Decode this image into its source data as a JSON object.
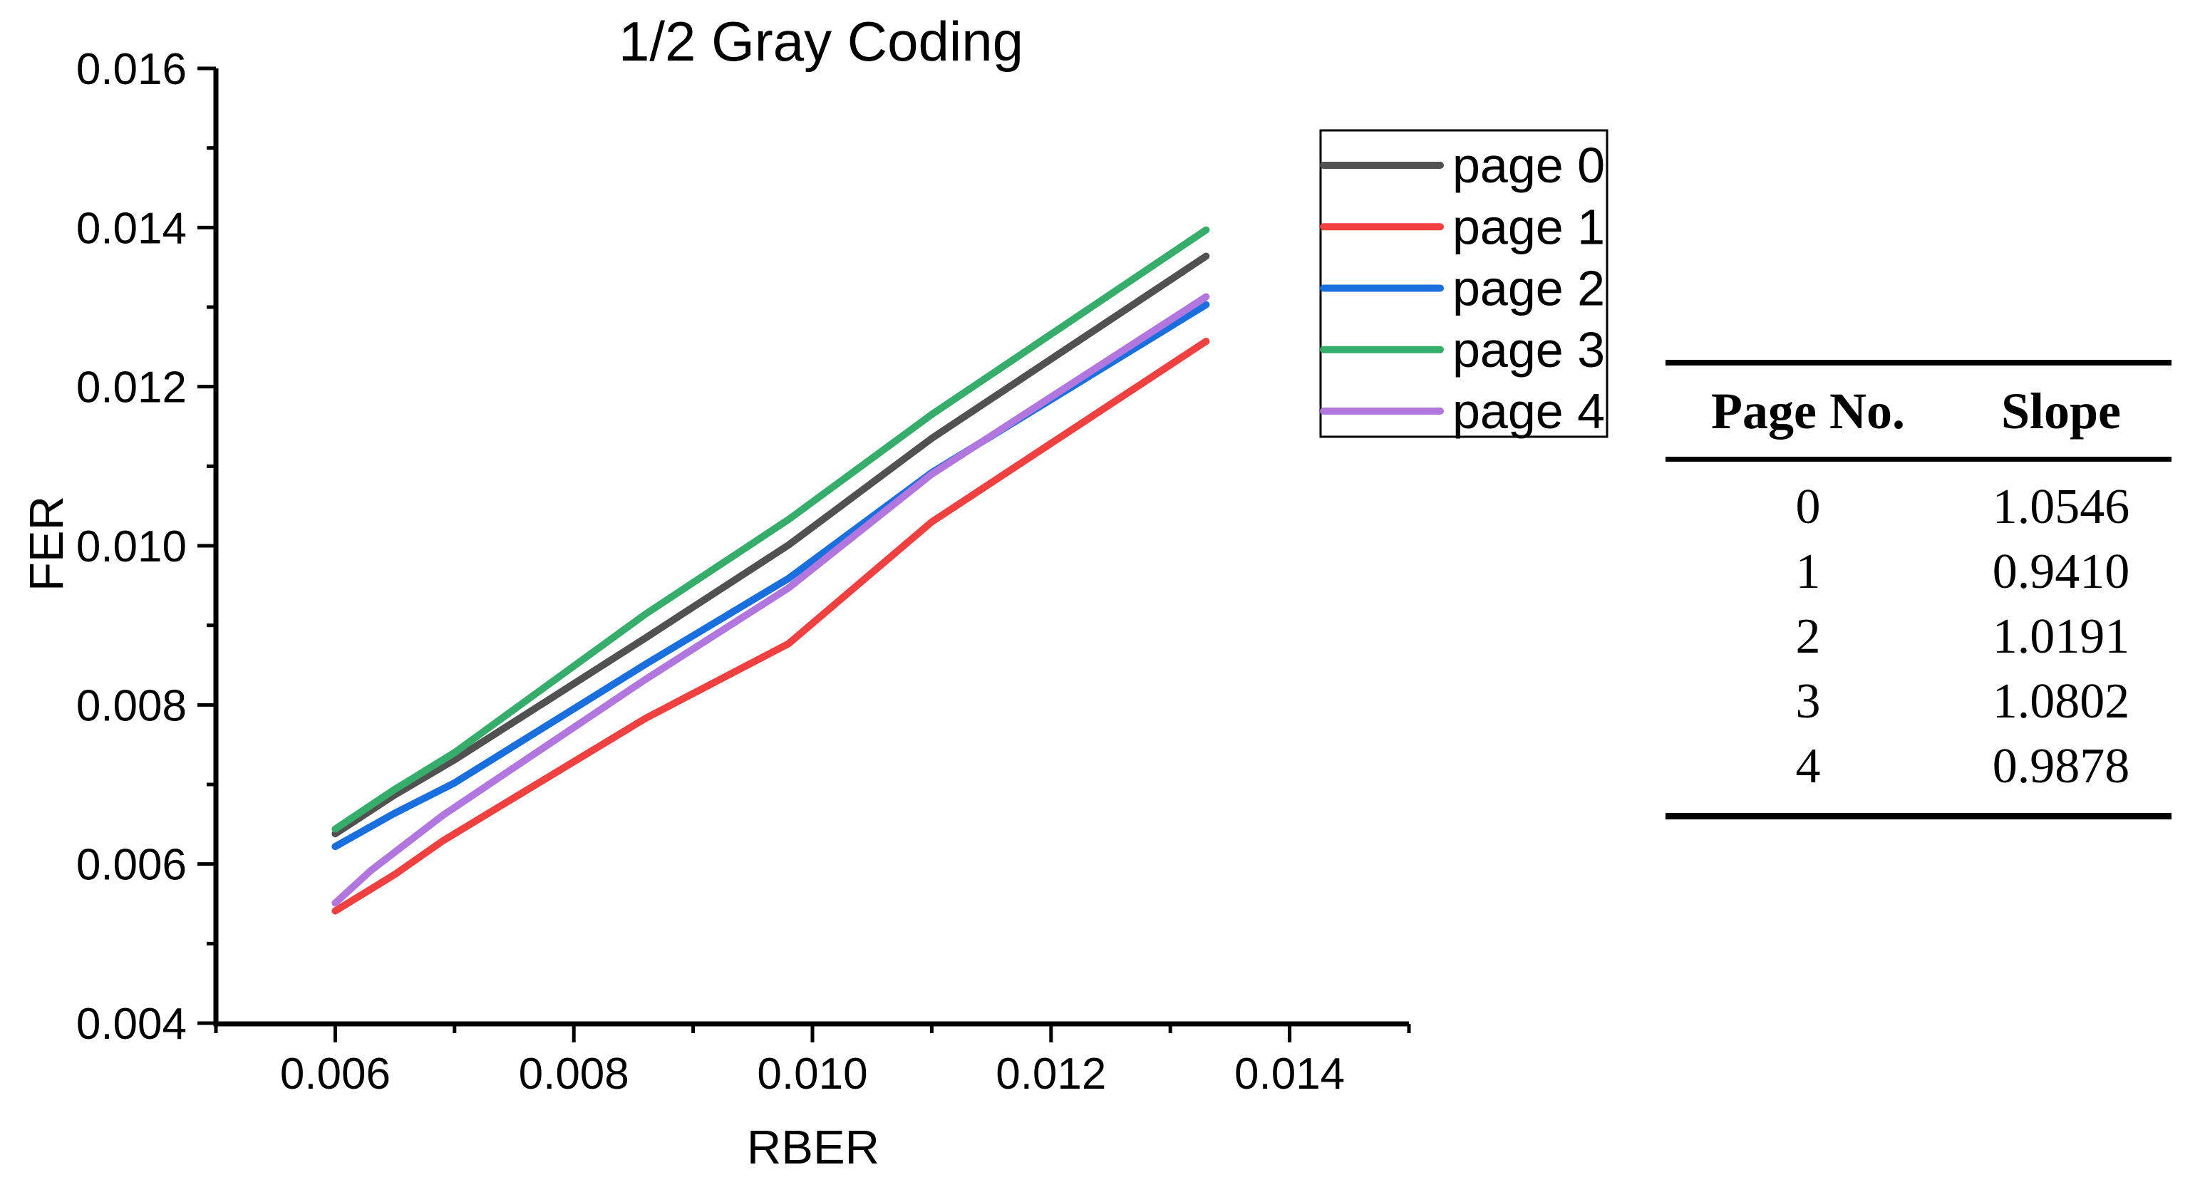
{
  "chart_data": {
    "type": "line",
    "title": "1/2 Gray Coding",
    "xlabel": "RBER",
    "ylabel": "FER",
    "xlim": [
      0.005,
      0.015
    ],
    "ylim": [
      0.004,
      0.016
    ],
    "grid": "off",
    "axis_color": "#000000",
    "x_major_ticks": [
      0.006,
      0.008,
      0.01,
      0.012,
      0.014
    ],
    "x_tick_labels": [
      "0.006",
      "0.008",
      "0.010",
      "0.012",
      "0.014"
    ],
    "x_minor_ticks": [
      0.005,
      0.007,
      0.009,
      0.011,
      0.013,
      0.015
    ],
    "y_major_ticks": [
      0.004,
      0.006,
      0.008,
      0.01,
      0.012,
      0.014,
      0.016
    ],
    "y_tick_labels": [
      "0.004",
      "0.006",
      "0.008",
      "0.010",
      "0.012",
      "0.014",
      "0.016"
    ],
    "y_minor_ticks": [
      0.005,
      0.007,
      0.009,
      0.011,
      0.013,
      0.015
    ],
    "legend": {
      "position": "upper-right-inside",
      "border": true,
      "entries": [
        "page 0",
        "page 1",
        "page 2",
        "page 3",
        "page 4"
      ]
    },
    "series": [
      {
        "name": "page 0",
        "color": "#515151",
        "x": [
          0.006,
          0.0065,
          0.007,
          0.0086,
          0.0098,
          0.011,
          0.0133
        ],
        "y": [
          0.00638,
          0.00687,
          0.00731,
          0.00884,
          0.01001,
          0.01135,
          0.01364
        ]
      },
      {
        "name": "page 1",
        "color": "#F14040",
        "x": [
          0.006,
          0.0065,
          0.0069,
          0.0086,
          0.0098,
          0.011,
          0.0133
        ],
        "y": [
          0.00541,
          0.00587,
          0.00629,
          0.00783,
          0.00877,
          0.0103,
          0.01257
        ]
      },
      {
        "name": "page 2",
        "color": "#1A6FDF",
        "x": [
          0.006,
          0.0065,
          0.007,
          0.0086,
          0.0098,
          0.011,
          0.0133
        ],
        "y": [
          0.00622,
          0.00664,
          0.00702,
          0.00851,
          0.00959,
          0.01092,
          0.01303
        ]
      },
      {
        "name": "page 3",
        "color": "#37AD6B",
        "x": [
          0.006,
          0.0065,
          0.007,
          0.0086,
          0.0098,
          0.011,
          0.0133
        ],
        "y": [
          0.00644,
          0.00694,
          0.0074,
          0.00914,
          0.01033,
          0.01165,
          0.01397
        ]
      },
      {
        "name": "page 4",
        "color": "#B177DE",
        "x": [
          0.006,
          0.0063,
          0.0069,
          0.0086,
          0.0098,
          0.011,
          0.0133
        ],
        "y": [
          0.00551,
          0.00592,
          0.00661,
          0.00832,
          0.00947,
          0.0109,
          0.01313
        ]
      }
    ]
  },
  "table": {
    "headers": [
      "Page No.",
      "Slope"
    ],
    "rows": [
      [
        "0",
        "1.0546"
      ],
      [
        "1",
        "0.9410"
      ],
      [
        "2",
        "1.0191"
      ],
      [
        "3",
        "1.0802"
      ],
      [
        "4",
        "0.9878"
      ]
    ]
  }
}
